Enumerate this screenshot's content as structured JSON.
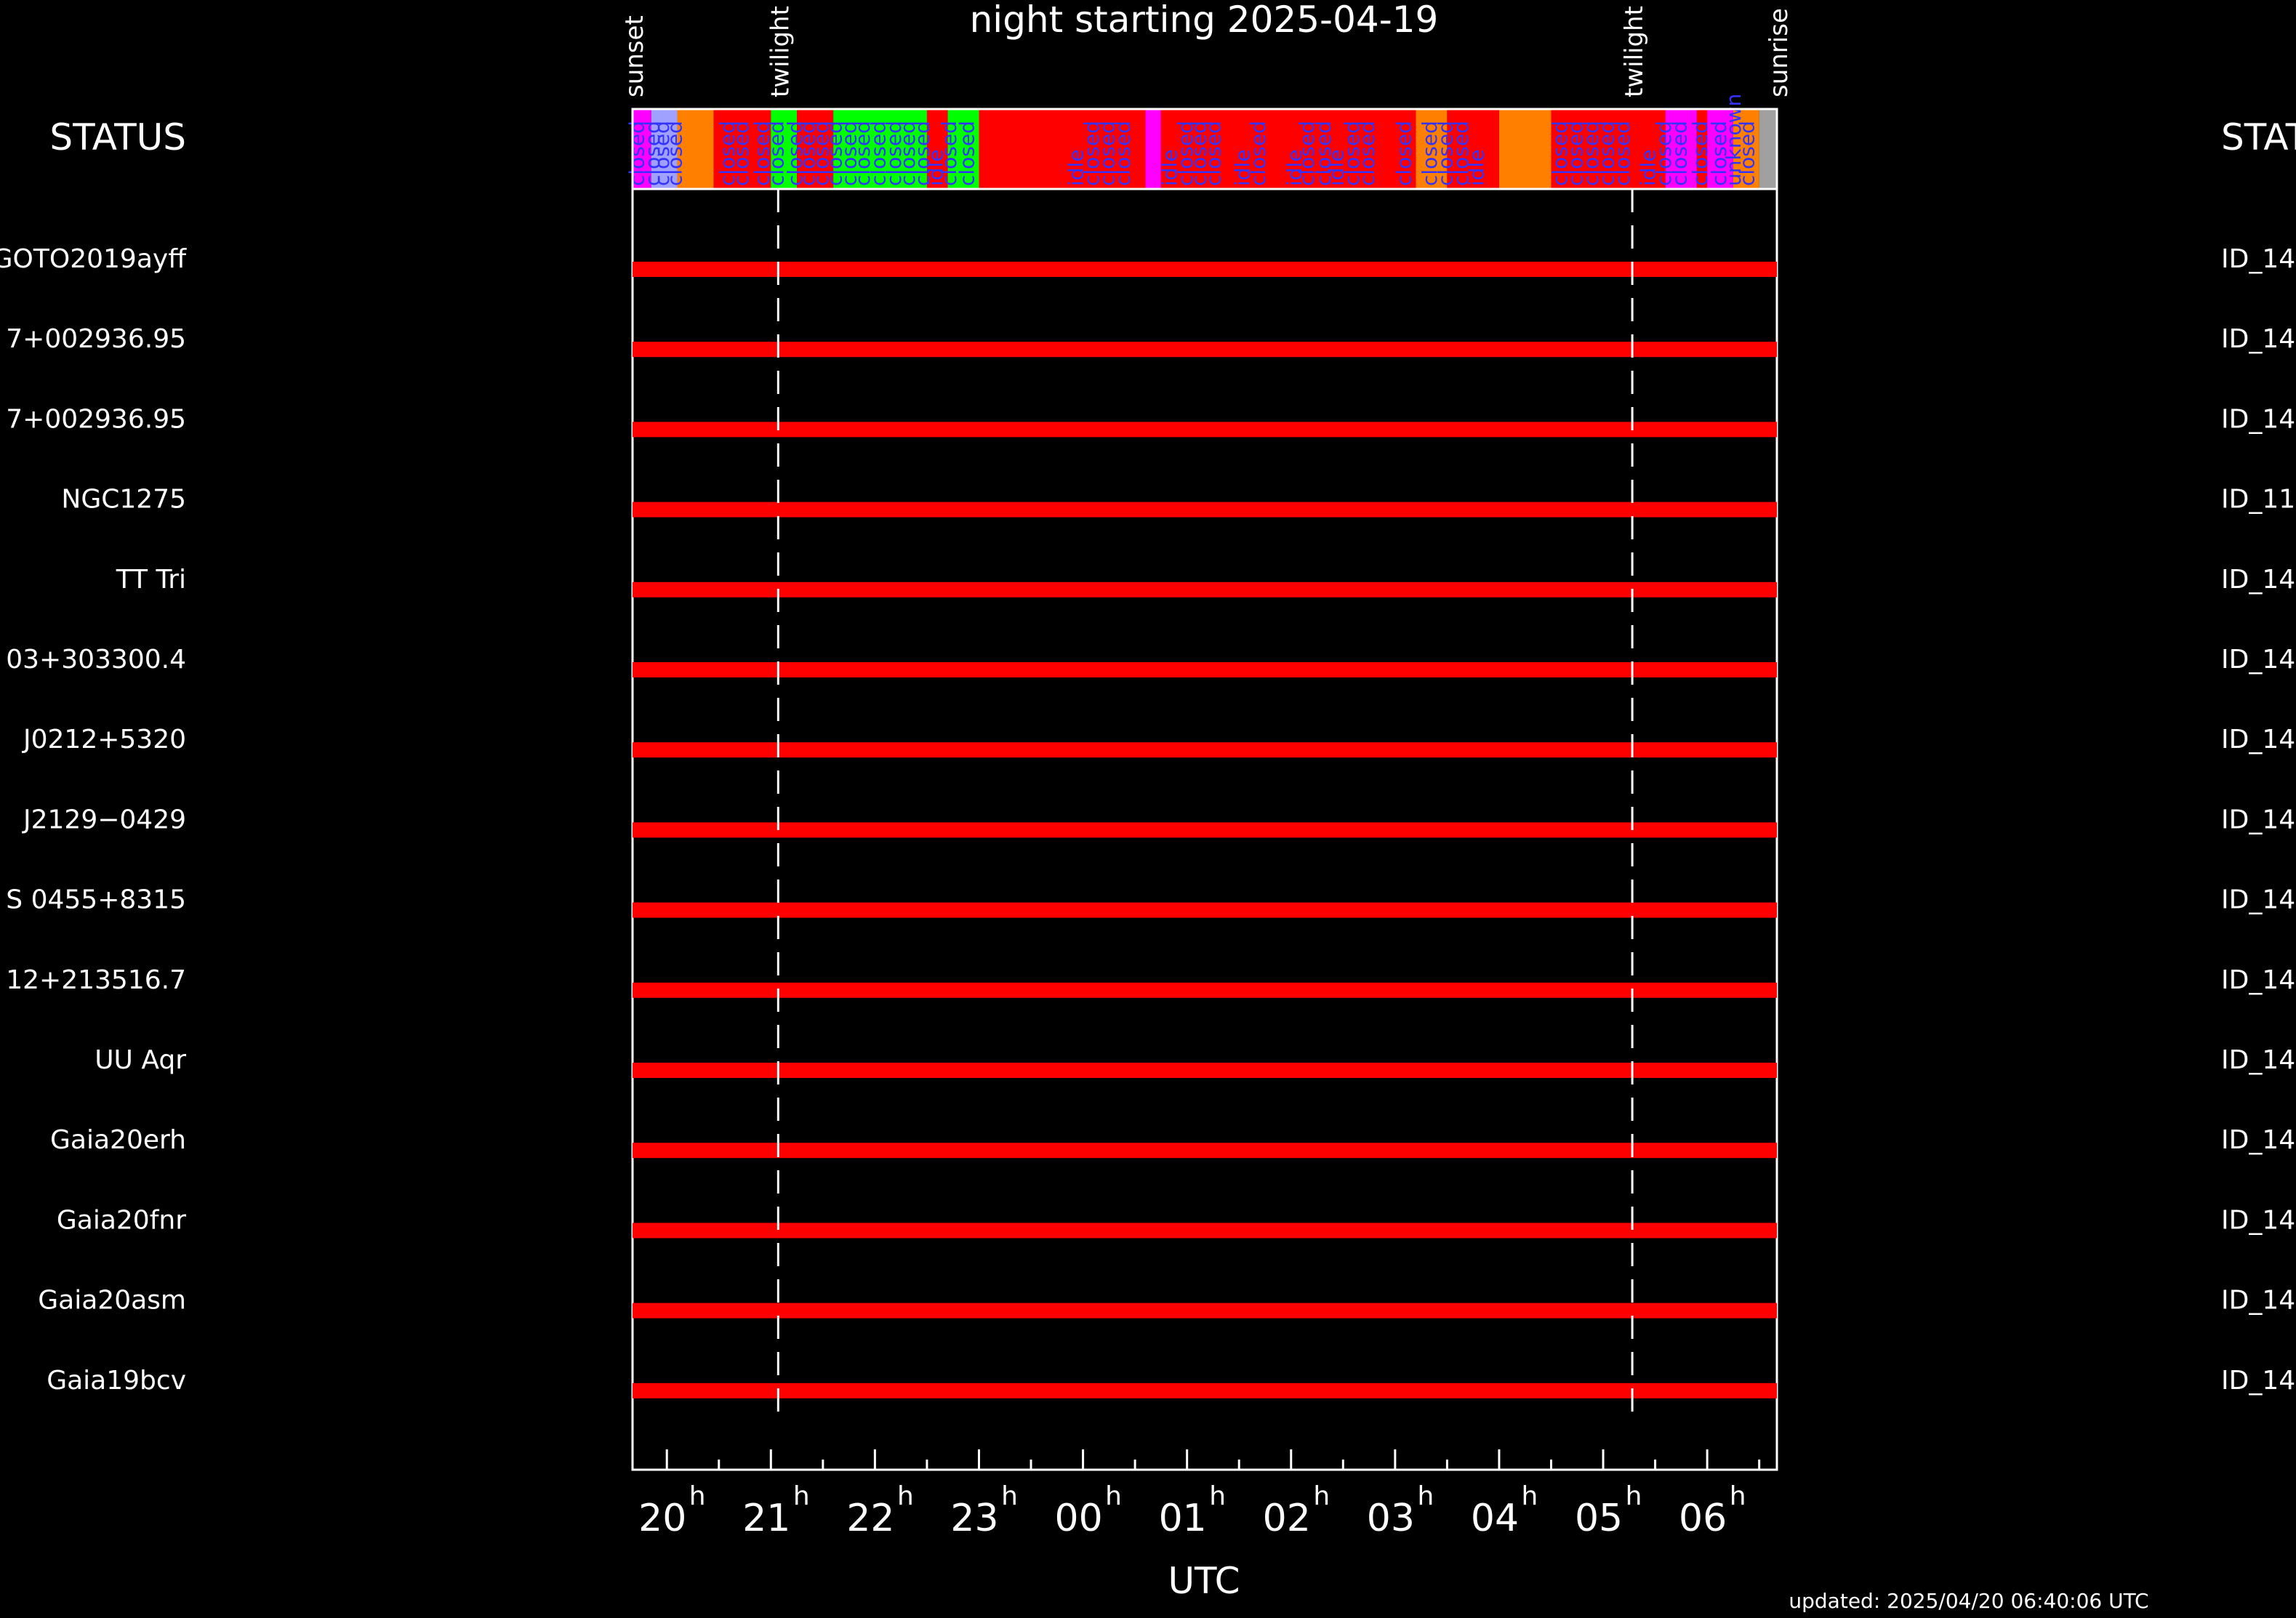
{
  "page": {
    "title": "night starting 2025-04-19",
    "status_label_left": "STATUS",
    "status_label_right": "STAT",
    "updated": "updated: 2025/04/20 06:40:06 UTC"
  },
  "chart_data": {
    "type": "gantt",
    "title": "night starting 2025-04-19",
    "xlabel": "UTC",
    "x_unit": "hour UTC",
    "xlim": [
      19.67,
      30.67
    ],
    "x_ticks": [
      {
        "label": "20",
        "sup": "h",
        "value": 20
      },
      {
        "label": "21",
        "sup": "h",
        "value": 21
      },
      {
        "label": "22",
        "sup": "h",
        "value": 22
      },
      {
        "label": "23",
        "sup": "h",
        "value": 23
      },
      {
        "label": "00",
        "sup": "h",
        "value": 24
      },
      {
        "label": "01",
        "sup": "h",
        "value": 25
      },
      {
        "label": "02",
        "sup": "h",
        "value": 26
      },
      {
        "label": "03",
        "sup": "h",
        "value": 27
      },
      {
        "label": "04",
        "sup": "h",
        "value": 28
      },
      {
        "label": "05",
        "sup": "h",
        "value": 29
      },
      {
        "label": "06",
        "sup": "h",
        "value": 30
      }
    ],
    "events": [
      {
        "label": "sunset",
        "value": 19.67,
        "line": false
      },
      {
        "label": "twilight",
        "value": 21.07,
        "line": true
      },
      {
        "label": "twilight",
        "value": 29.28,
        "line": true
      },
      {
        "label": "sunrise",
        "value": 30.67,
        "line": false
      }
    ],
    "status_segments": [
      {
        "start": 19.67,
        "end": 19.85,
        "color": "#ff00ff"
      },
      {
        "start": 19.85,
        "end": 20.1,
        "color": "#a0a0ff"
      },
      {
        "start": 20.1,
        "end": 20.45,
        "color": "#ff8000"
      },
      {
        "start": 20.45,
        "end": 21.0,
        "color": "#ff0000"
      },
      {
        "start": 21.0,
        "end": 21.25,
        "color": "#00ff00"
      },
      {
        "start": 21.25,
        "end": 21.6,
        "color": "#ff0000"
      },
      {
        "start": 21.6,
        "end": 22.5,
        "color": "#00ff00"
      },
      {
        "start": 22.5,
        "end": 22.7,
        "color": "#ff0000"
      },
      {
        "start": 22.7,
        "end": 23.0,
        "color": "#00ff00"
      },
      {
        "start": 23.0,
        "end": 24.6,
        "color": "#ff0000"
      },
      {
        "start": 24.6,
        "end": 24.75,
        "color": "#ff00ff"
      },
      {
        "start": 24.75,
        "end": 27.2,
        "color": "#ff0000"
      },
      {
        "start": 27.2,
        "end": 27.5,
        "color": "#ff8000"
      },
      {
        "start": 27.5,
        "end": 28.0,
        "color": "#ff0000"
      },
      {
        "start": 28.0,
        "end": 28.5,
        "color": "#ff8000"
      },
      {
        "start": 28.5,
        "end": 29.6,
        "color": "#ff0000"
      },
      {
        "start": 29.6,
        "end": 29.9,
        "color": "#ff00ff"
      },
      {
        "start": 29.9,
        "end": 30.0,
        "color": "#ff0000"
      },
      {
        "start": 30.0,
        "end": 30.25,
        "color": "#ff00ff"
      },
      {
        "start": 30.25,
        "end": 30.5,
        "color": "#ff8000"
      },
      {
        "start": 30.5,
        "end": 30.67,
        "color": "#a0a0a0"
      }
    ],
    "status_labels": [
      {
        "value": 19.78,
        "text": "closed"
      },
      {
        "value": 19.93,
        "text": "closed"
      },
      {
        "value": 20.02,
        "text": "closed"
      },
      {
        "value": 20.14,
        "text": "closed"
      },
      {
        "value": 20.65,
        "text": "closed"
      },
      {
        "value": 20.78,
        "text": "closed"
      },
      {
        "value": 20.98,
        "text": "closed"
      },
      {
        "value": 21.12,
        "text": "closed"
      },
      {
        "value": 21.3,
        "text": "closed"
      },
      {
        "value": 21.42,
        "text": "closed"
      },
      {
        "value": 21.55,
        "text": "closed"
      },
      {
        "value": 21.68,
        "text": "closed"
      },
      {
        "value": 21.82,
        "text": "closed"
      },
      {
        "value": 21.95,
        "text": "closed"
      },
      {
        "value": 22.1,
        "text": "closed"
      },
      {
        "value": 22.25,
        "text": "closed"
      },
      {
        "value": 22.38,
        "text": "closed"
      },
      {
        "value": 22.52,
        "text": "closed"
      },
      {
        "value": 22.65,
        "text": "idle"
      },
      {
        "value": 22.78,
        "text": "closed"
      },
      {
        "value": 22.95,
        "text": "closed"
      },
      {
        "value": 24.0,
        "text": "idle"
      },
      {
        "value": 24.15,
        "text": "closed"
      },
      {
        "value": 24.3,
        "text": "closed"
      },
      {
        "value": 24.45,
        "text": "closed"
      },
      {
        "value": 24.9,
        "text": "idle"
      },
      {
        "value": 25.05,
        "text": "closed"
      },
      {
        "value": 25.18,
        "text": "closed"
      },
      {
        "value": 25.32,
        "text": "closed"
      },
      {
        "value": 25.6,
        "text": "idle"
      },
      {
        "value": 25.75,
        "text": "closed"
      },
      {
        "value": 26.1,
        "text": "idle"
      },
      {
        "value": 26.22,
        "text": "closed"
      },
      {
        "value": 26.38,
        "text": "closed"
      },
      {
        "value": 26.5,
        "text": "idle"
      },
      {
        "value": 26.65,
        "text": "closed"
      },
      {
        "value": 26.8,
        "text": "closed"
      },
      {
        "value": 27.15,
        "text": "closed"
      },
      {
        "value": 27.4,
        "text": "closed"
      },
      {
        "value": 27.55,
        "text": "closed"
      },
      {
        "value": 27.7,
        "text": "closed"
      },
      {
        "value": 27.85,
        "text": "idle"
      },
      {
        "value": 28.65,
        "text": "closed"
      },
      {
        "value": 28.8,
        "text": "closed"
      },
      {
        "value": 28.95,
        "text": "closed"
      },
      {
        "value": 29.1,
        "text": "closed"
      },
      {
        "value": 29.25,
        "text": "closed"
      },
      {
        "value": 29.5,
        "text": "idle"
      },
      {
        "value": 29.65,
        "text": "closed"
      },
      {
        "value": 29.8,
        "text": "closed"
      },
      {
        "value": 30.0,
        "text": "closed"
      },
      {
        "value": 30.18,
        "text": "closed"
      },
      {
        "value": 30.32,
        "text": "unknown"
      },
      {
        "value": 30.45,
        "text": "closed"
      }
    ],
    "rows": [
      {
        "name": "GOTO2019ayff",
        "id": "ID_14",
        "start": 19.67,
        "end": 30.67,
        "color": "#ff0000"
      },
      {
        "name": "7+002936.95",
        "id": "ID_14",
        "start": 19.67,
        "end": 30.67,
        "color": "#ff0000"
      },
      {
        "name": "7+002936.95",
        "id": "ID_14",
        "start": 19.67,
        "end": 30.67,
        "color": "#ff0000"
      },
      {
        "name": "NGC1275",
        "id": "ID_11",
        "start": 19.67,
        "end": 30.67,
        "color": "#ff0000"
      },
      {
        "name": "TT Tri",
        "id": "ID_14",
        "start": 19.67,
        "end": 30.67,
        "color": "#ff0000"
      },
      {
        "name": "03+303300.4",
        "id": "ID_14",
        "start": 19.67,
        "end": 30.67,
        "color": "#ff0000"
      },
      {
        "name": "J0212+5320",
        "id": "ID_14",
        "start": 19.67,
        "end": 30.67,
        "color": "#ff0000"
      },
      {
        "name": "J2129−0429",
        "id": "ID_14",
        "start": 19.67,
        "end": 30.67,
        "color": "#ff0000"
      },
      {
        "name": "S 0455+8315",
        "id": "ID_14",
        "start": 19.67,
        "end": 30.67,
        "color": "#ff0000"
      },
      {
        "name": "12+213516.7",
        "id": "ID_14",
        "start": 19.67,
        "end": 30.67,
        "color": "#ff0000"
      },
      {
        "name": "UU Aqr",
        "id": "ID_14",
        "start": 19.67,
        "end": 30.67,
        "color": "#ff0000"
      },
      {
        "name": "Gaia20erh",
        "id": "ID_14",
        "start": 19.67,
        "end": 30.67,
        "color": "#ff0000"
      },
      {
        "name": "Gaia20fnr",
        "id": "ID_14",
        "start": 19.67,
        "end": 30.67,
        "color": "#ff0000"
      },
      {
        "name": "Gaia20asm",
        "id": "ID_14",
        "start": 19.67,
        "end": 30.67,
        "color": "#ff0000"
      },
      {
        "name": "Gaia19bcv",
        "id": "ID_14",
        "start": 19.67,
        "end": 30.67,
        "color": "#ff0000"
      }
    ]
  }
}
